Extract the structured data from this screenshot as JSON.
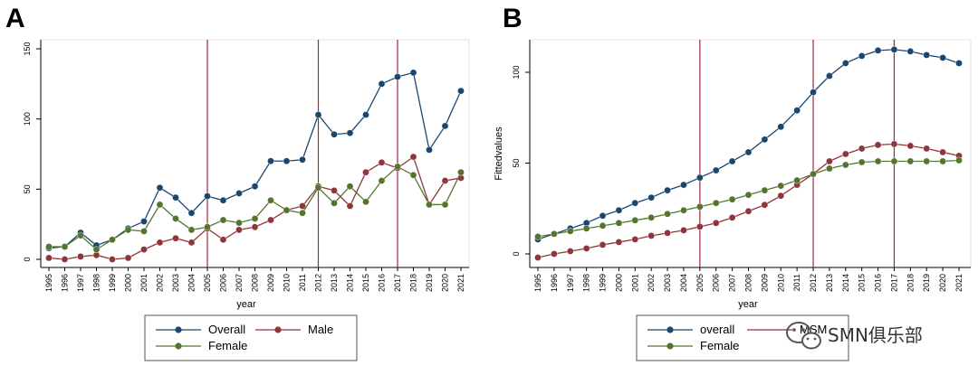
{
  "chart_data": [
    {
      "panel": "A",
      "type": "line",
      "xlabel": "year",
      "ylabel": "",
      "x": [
        1995,
        1996,
        1997,
        1998,
        1999,
        2000,
        2001,
        2002,
        2003,
        2004,
        2005,
        2006,
        2007,
        2008,
        2009,
        2010,
        2011,
        2012,
        2013,
        2014,
        2015,
        2016,
        2017,
        2018,
        2019,
        2020,
        2021
      ],
      "ylim": [
        0,
        150
      ],
      "yticks": [
        0,
        50,
        100,
        150
      ],
      "vlines": [
        2005,
        2012,
        2017
      ],
      "series": [
        {
          "name": "Overall",
          "color": "#1a476f",
          "values": [
            8,
            9,
            19,
            10,
            14,
            22,
            27,
            51,
            44,
            33,
            45,
            42,
            47,
            52,
            70,
            70,
            71,
            103,
            89,
            90,
            103,
            125,
            130,
            133,
            78,
            95,
            120
          ]
        },
        {
          "name": "Male",
          "color": "#90353b",
          "values": [
            1,
            0,
            2,
            3,
            0,
            1,
            7,
            12,
            15,
            12,
            22,
            14,
            21,
            23,
            28,
            35,
            38,
            52,
            49,
            38,
            62,
            69,
            65,
            73,
            39,
            56,
            58
          ]
        },
        {
          "name": "Female",
          "color": "#55752f",
          "values": [
            9,
            9,
            17,
            7,
            14,
            21,
            20,
            39,
            29,
            21,
            23,
            28,
            26,
            29,
            42,
            35,
            33,
            51,
            40,
            52,
            41,
            56,
            66,
            60,
            39,
            39,
            62
          ]
        }
      ],
      "legend": "bottom",
      "grid": false
    },
    {
      "panel": "B",
      "type": "line",
      "xlabel": "year",
      "ylabel": "Fittedvalues",
      "x": [
        1995,
        1996,
        1997,
        1998,
        1999,
        2000,
        2001,
        2002,
        2003,
        2004,
        2005,
        2006,
        2007,
        2008,
        2009,
        2010,
        2011,
        2012,
        2013,
        2014,
        2015,
        2016,
        2017,
        2018,
        2019,
        2020,
        2021
      ],
      "ylim": [
        -5,
        115
      ],
      "yticks": [
        0,
        50,
        100
      ],
      "vlines": [
        2005,
        2012,
        2017
      ],
      "series": [
        {
          "name": "overall",
          "color": "#1a476f",
          "values": [
            8,
            11,
            14,
            17,
            21,
            24,
            28,
            31,
            35,
            38,
            42,
            46,
            51,
            56,
            63,
            70,
            79,
            89,
            98,
            105,
            109,
            112,
            112.5,
            111.5,
            109.5,
            108,
            105
          ]
        },
        {
          "name": "MSM",
          "color": "#90353b",
          "values": [
            -2,
            0,
            1.5,
            3,
            5,
            6.5,
            8,
            10,
            11.5,
            13,
            15,
            17,
            20,
            23.5,
            27,
            32,
            38,
            44,
            51,
            55,
            58,
            60,
            60.5,
            59.5,
            58,
            56,
            54
          ]
        },
        {
          "name": "Female",
          "color": "#55752f",
          "values": [
            9.5,
            11,
            12.5,
            14,
            15.5,
            17,
            18.5,
            20,
            22,
            24,
            26,
            28,
            30,
            32.5,
            35,
            37.5,
            40.5,
            44,
            47,
            49,
            50.5,
            51,
            51,
            51,
            51,
            51,
            51.5
          ]
        }
      ],
      "legend": "bottom",
      "grid": false
    }
  ],
  "watermark": {
    "text": "SMN俱乐部",
    "icon": "wechat-logo-icon"
  }
}
